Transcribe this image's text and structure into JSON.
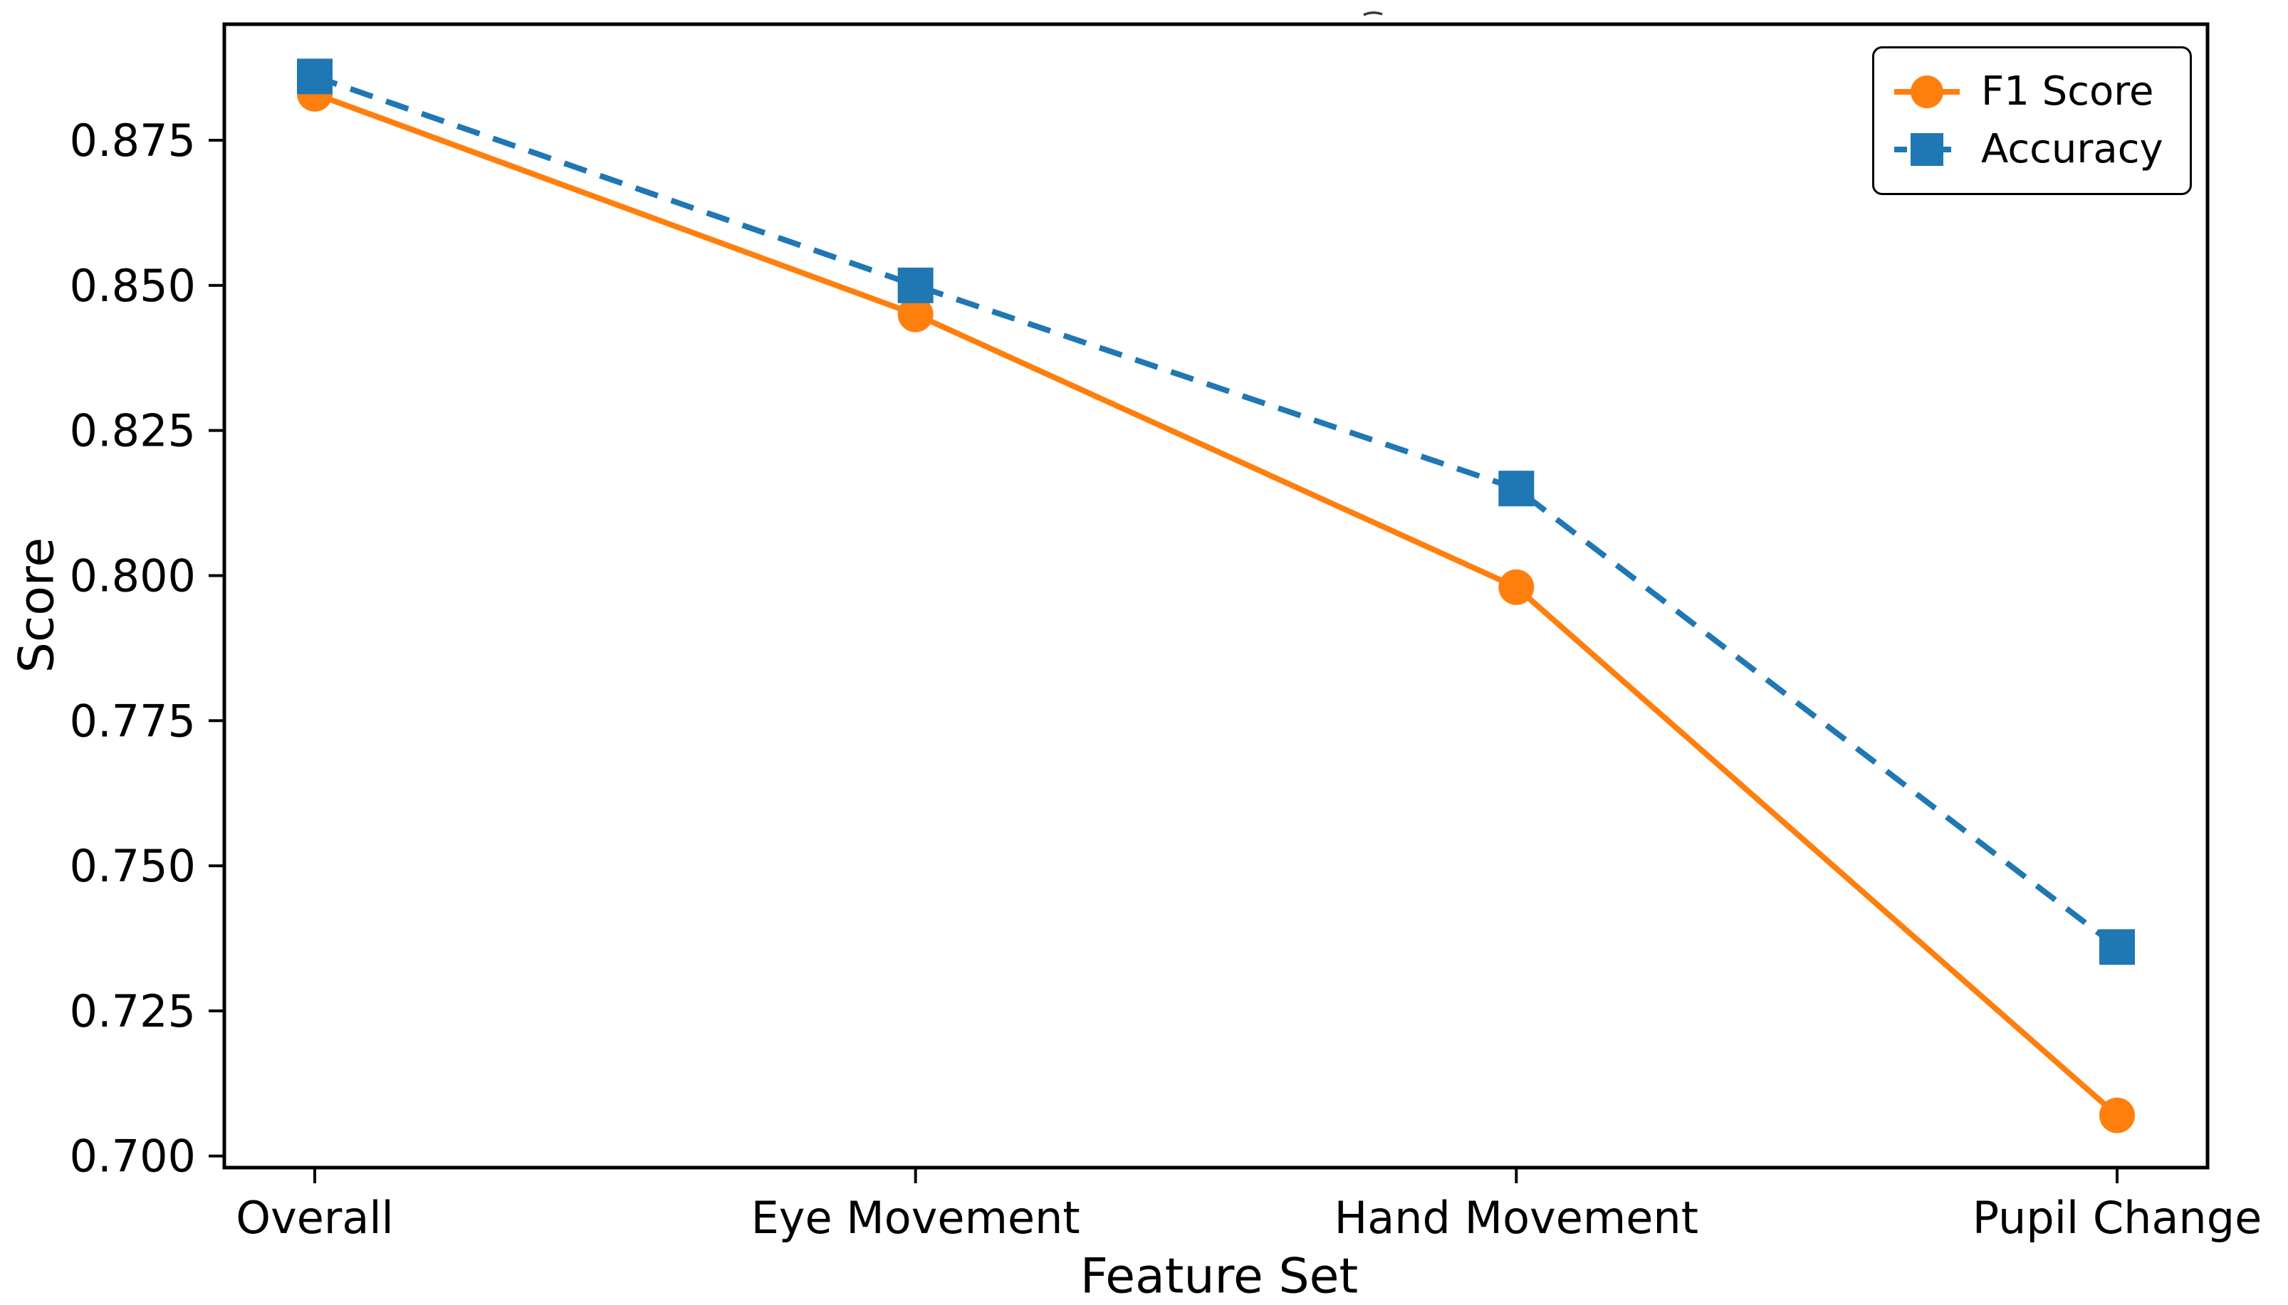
{
  "chart_data": {
    "type": "line",
    "categories": [
      "Overall",
      "Eye Movement",
      "Hand Movement",
      "Pupil Change"
    ],
    "series": [
      {
        "name": "F1 Score",
        "values": [
          0.883,
          0.845,
          0.798,
          0.707
        ],
        "color": "#ff7f0e",
        "line_style": "solid",
        "marker": "circle"
      },
      {
        "name": "Accuracy",
        "values": [
          0.886,
          0.85,
          0.815,
          0.736
        ],
        "color": "#1f77b4",
        "line_style": "dashed",
        "marker": "square"
      }
    ],
    "title": "",
    "xlabel": "Feature Set",
    "ylabel": "Score",
    "ylim": [
      0.698,
      0.895
    ],
    "yticks": [
      0.7,
      0.725,
      0.75,
      0.775,
      0.8,
      0.825,
      0.85,
      0.875
    ],
    "ytick_labels": [
      "0.700",
      "0.725",
      "0.750",
      "0.775",
      "0.800",
      "0.825",
      "0.850",
      "0.875"
    ],
    "grid": false,
    "legend_position": "upper right",
    "frame_color": "#000000",
    "background": "#ffffff"
  }
}
